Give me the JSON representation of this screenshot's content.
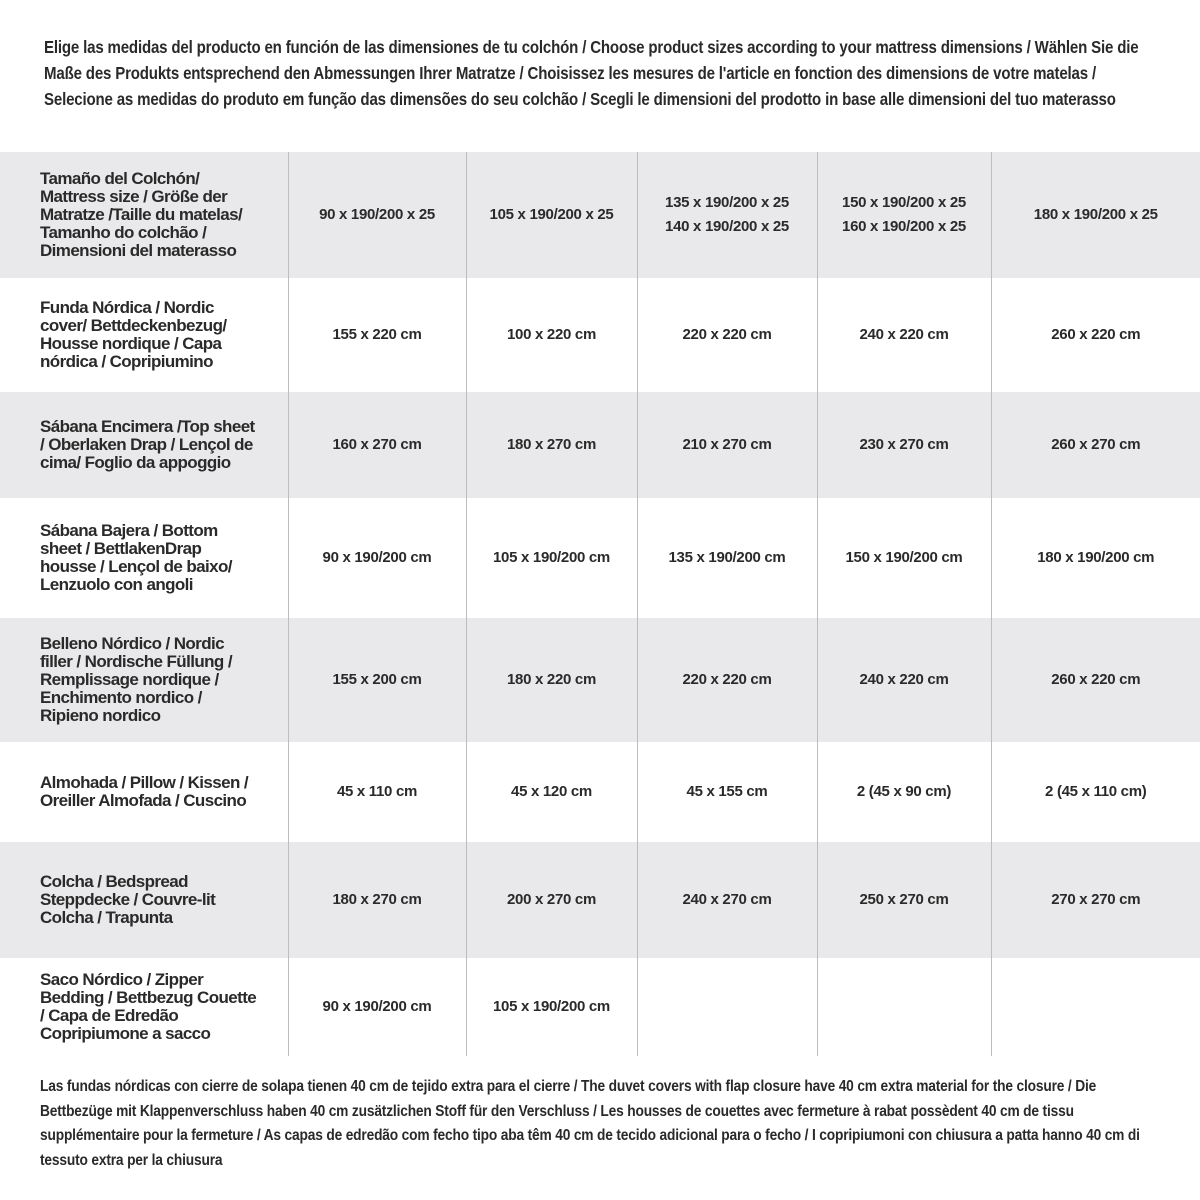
{
  "intro": "Elige las medidas del producto en función de las dimensiones de tu colchón / Choose product sizes according to your mattress dimensions / Wählen Sie die Maße des Produkts entsprechend den Abmessungen Ihrer Matratze / Choisissez les mesures de l'article en fonction des dimensions de votre matelas / Selecione as medidas do produto em função das dimensões do seu colchão / Scegli le dimensioni del prodotto in base alle dimensioni del tuo materasso",
  "rows": [
    {
      "label": "Tamaño del Colchón/ Mattress size / Größe der Matratze /Taille du matelas/ Tamanho do colchão / Dimensioni del materasso",
      "cells": [
        "90 x 190/200 x 25",
        "105 x 190/200 x 25",
        "135 x 190/200 x 25\n140 x 190/200 x 25",
        "150 x 190/200 x 25\n160 x 190/200 x 25",
        "180 x 190/200 x 25"
      ]
    },
    {
      "label": "Funda Nórdica /  Nordic cover/ Bettdeckenbezug/ Housse nordique  / Capa nórdica / Copripiumino",
      "cells": [
        "155 x 220 cm",
        "100 x 220 cm",
        "220 x 220 cm",
        "240 x 220 cm",
        "260 x 220 cm"
      ]
    },
    {
      "label": "Sábana Encimera /Top sheet / Oberlaken Drap / Lençol de cima/ Foglio da appoggio",
      "cells": [
        "160 x 270 cm",
        "180 x 270 cm",
        "210 x 270 cm",
        "230 x 270 cm",
        "260 x 270 cm"
      ]
    },
    {
      "label": "Sábana Bajera / Bottom sheet / BettlakenDrap housse / Lençol de baixo/ Lenzuolo con angoli",
      "cells": [
        "90 x 190/200 cm",
        "105 x 190/200 cm",
        "135 x 190/200 cm",
        "150 x 190/200 cm",
        "180 x 190/200 cm"
      ]
    },
    {
      "label": "Belleno Nórdico / Nordic filler / Nordische Füllung / Remplissage nordique / Enchimento nordico / Ripieno nordico",
      "cells": [
        "155 x 200 cm",
        "180 x 220 cm",
        "220 x 220 cm",
        "240 x 220 cm",
        "260 x 220 cm"
      ]
    },
    {
      "label": "Almohada  / Pillow / Kissen / Oreiller Almofada / Cuscino",
      "cells": [
        "45 x 110 cm",
        "45 x 120 cm",
        "45 x 155 cm",
        "2 (45 x 90 cm)",
        "2 (45 x 110 cm)"
      ]
    },
    {
      "label": "Colcha / Bedspread Steppdecke / Couvre-lit Colcha / Trapunta",
      "cells": [
        "180 x 270 cm",
        "200 x 270 cm",
        "240 x 270 cm",
        "250 x 270 cm",
        "270 x 270 cm"
      ]
    },
    {
      "label": "Saco Nórdico / Zipper Bedding / Bettbezug Couette  / Capa de Edredão Copripiumone a sacco",
      "cells": [
        "90 x 190/200 cm",
        "105 x 190/200 cm",
        "",
        "",
        ""
      ]
    }
  ],
  "footnote": "Las fundas nórdicas con cierre de solapa tienen 40 cm de tejido extra para el cierre  / The duvet covers with flap closure have 40 cm extra material for the closure / Die Bettbezüge mit Klappenverschluss haben 40 cm zusätzlichen Stoff für den Verschluss / Les housses de couettes avec fermeture à rabat possèdent 40 cm de tissu supplémentaire pour la fermeture / As capas de edredão com fecho tipo aba têm 40 cm de tecido adicional para o fecho / I copripiumoni con chiusura a patta hanno 40 cm di tessuto extra per la chiusura"
}
